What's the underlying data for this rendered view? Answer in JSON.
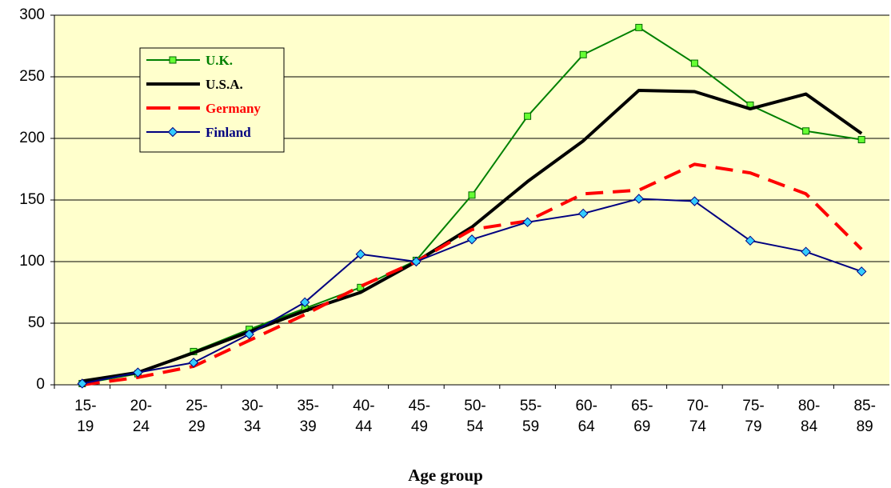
{
  "chart_data": {
    "type": "line",
    "x_label": "Age group",
    "categories": [
      "15-19",
      "20-24",
      "25-29",
      "30-34",
      "35-39",
      "40-44",
      "45-49",
      "50-54",
      "55-59",
      "60-64",
      "65-69",
      "70-74",
      "75-79",
      "80-84",
      "85-89"
    ],
    "series": [
      {
        "name": "U.K.",
        "color": "#008000",
        "values": [
          1,
          9,
          27,
          45,
          62,
          79,
          101,
          154,
          218,
          268,
          290,
          261,
          227,
          206,
          199
        ]
      },
      {
        "name": "U.S.A.",
        "color": "#000000",
        "values": [
          3,
          10,
          26,
          43,
          60,
          75,
          100,
          128,
          165,
          198,
          239,
          238,
          224,
          236,
          204
        ]
      },
      {
        "name": "Germany",
        "color": "#ff0000",
        "values": [
          0,
          6,
          15,
          36,
          57,
          80,
          100,
          126,
          133,
          155,
          158,
          179,
          172,
          155,
          110
        ]
      },
      {
        "name": "Finland",
        "color": "#000080",
        "values": [
          1,
          10,
          18,
          41,
          67,
          106,
          100,
          118,
          132,
          139,
          151,
          149,
          117,
          108,
          92
        ]
      }
    ],
    "ylim": [
      0,
      300
    ],
    "yticks": [
      0,
      50,
      100,
      150,
      200,
      250,
      300
    ],
    "grid": true
  }
}
